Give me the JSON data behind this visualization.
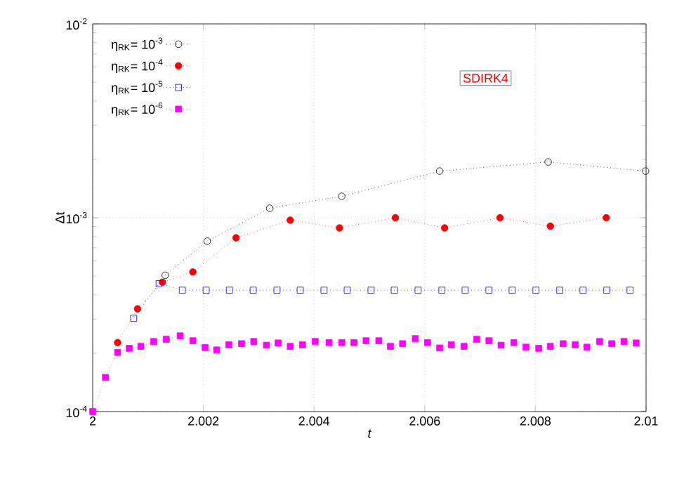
{
  "chart_data": {
    "type": "line",
    "xlabel": "t",
    "ylabel": "Δt",
    "annotations": [
      "SDIRK4"
    ],
    "log": "y",
    "grid": true,
    "legend": "top left",
    "line_style": "dotted",
    "xlim": [
      2,
      2.01
    ],
    "xticks": [
      2,
      2.002,
      2.004,
      2.006,
      2.008,
      2.01
    ],
    "ylim": [
      0.0001,
      0.01
    ],
    "yticks": [
      {
        "value": 0.0001,
        "label": "10$^{-4}$"
      },
      {
        "value": 0.001,
        "label": "10$^{-3}$"
      },
      {
        "value": 0.01,
        "label": "10$^{-2}$"
      }
    ],
    "series": [
      {
        "name": "η$_{RK}$= 10$^{-3}$",
        "color": "#000000",
        "marker": "circle",
        "x": [
          2.00131,
          2.00207,
          2.0032,
          2.0045,
          2.00627,
          2.00823,
          2.00999
        ],
        "values": [
          0.000505,
          0.000757,
          0.00112,
          0.00129,
          0.00174,
          0.00194,
          0.00174
        ]
      },
      {
        "name": "η$_{RK}$= 10$^{-4}$",
        "color": "#ff0000",
        "marker": "circle",
        "x": [
          2.00045,
          2.00081,
          2.00126,
          2.00181,
          2.00259,
          2.00357,
          2.00446,
          2.00547,
          2.00636,
          2.00736,
          2.00827,
          2.00928
        ],
        "values": [
          0.000227,
          0.000339,
          0.000465,
          0.000525,
          0.000788,
          0.000972,
          0.000886,
          0.001,
          0.000886,
          0.001,
          0.000905,
          0.001
        ]
      },
      {
        "name": "η$_{RK}$= 10$^{-5}$",
        "color": "#0000ff",
        "marker": "square",
        "x": [
          2.00074,
          2.0012,
          2.00162,
          2.00205,
          2.00247,
          2.0029,
          2.00333,
          2.00375,
          2.00418,
          2.0046,
          2.00503,
          2.00545,
          2.00588,
          2.00631,
          2.00673,
          2.00716,
          2.00758,
          2.00801,
          2.00844,
          2.00886,
          2.00929,
          2.00971
        ],
        "values": [
          0.000303,
          0.000457,
          0.000423,
          0.000423,
          0.000423,
          0.000423,
          0.000423,
          0.000423,
          0.000423,
          0.000423,
          0.000423,
          0.000423,
          0.000423,
          0.000423,
          0.000423,
          0.000423,
          0.000423,
          0.000423,
          0.000423,
          0.000423,
          0.000423,
          0.000423
        ]
      },
      {
        "name": "η$_{RK}$= 10$^{-6}$",
        "color": "#ff00ff",
        "marker": "square",
        "x": [
          2.0,
          2.00023,
          2.00045,
          2.00066,
          2.00087,
          2.0011,
          2.00133,
          2.00158,
          2.00181,
          2.00203,
          2.00224,
          2.00246,
          2.00269,
          2.00291,
          2.00314,
          2.00335,
          2.00357,
          2.00379,
          2.00402,
          2.00427,
          2.0045,
          2.00472,
          2.00494,
          2.00517,
          2.00538,
          2.0056,
          2.00583,
          2.00605,
          2.00627,
          2.00648,
          2.00671,
          2.00694,
          2.00716,
          2.00738,
          2.00761,
          2.00783,
          2.00806,
          2.00827,
          2.0085,
          2.00872,
          2.00893,
          2.00916,
          2.00938,
          2.0096,
          2.00982
        ],
        "values": [
          0.0001,
          0.00015,
          0.000202,
          0.000212,
          0.000217,
          0.00023,
          0.000236,
          0.000246,
          0.000232,
          0.000214,
          0.000208,
          0.000221,
          0.000224,
          0.00023,
          0.00022,
          0.000226,
          0.000217,
          0.000221,
          0.00023,
          0.000227,
          0.000227,
          0.000227,
          0.000232,
          0.000232,
          0.000217,
          0.000224,
          0.000238,
          0.000227,
          0.000213,
          0.000221,
          0.000217,
          0.000236,
          0.000232,
          0.00022,
          0.000227,
          0.000215,
          0.000212,
          0.000217,
          0.000224,
          0.000221,
          0.000215,
          0.00023,
          0.000224,
          0.00023,
          0.000226
        ]
      }
    ]
  }
}
